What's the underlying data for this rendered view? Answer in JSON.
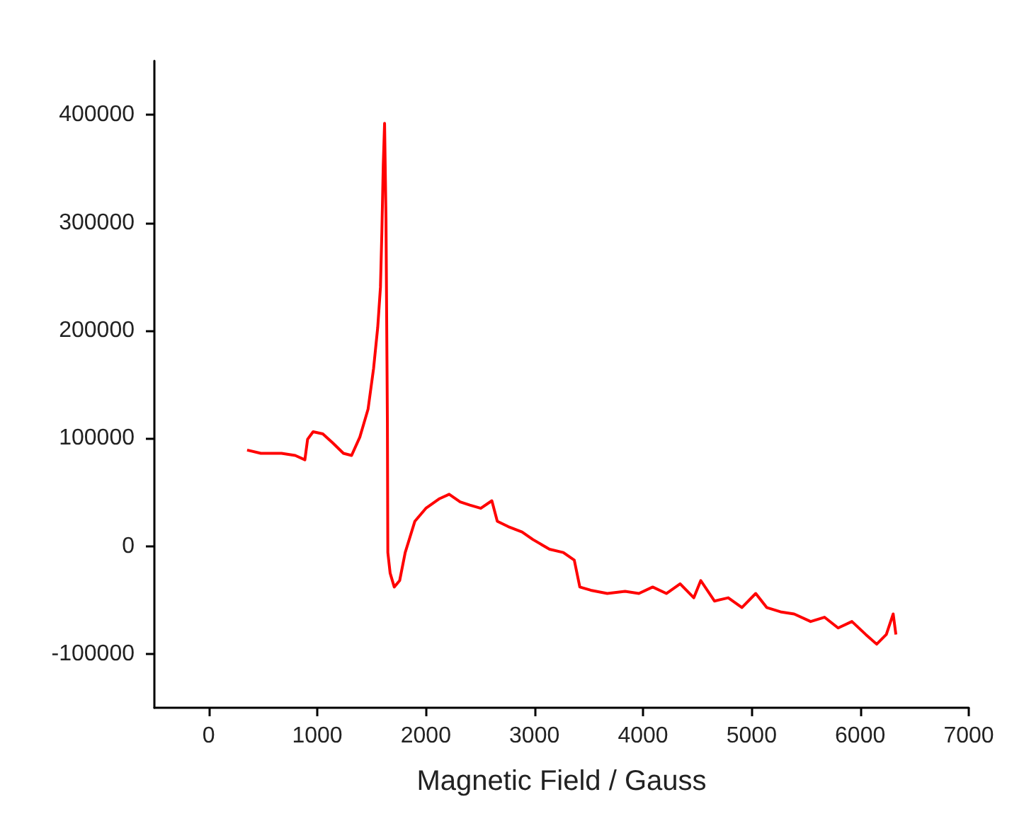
{
  "chart_data": {
    "type": "line",
    "xlabel": "Magnetic Field / Gauss",
    "xlim": [
      -500,
      7000
    ],
    "xticks": [
      0,
      1000,
      2000,
      3000,
      4000,
      5000,
      6000,
      7000
    ],
    "ylim": [
      -150000,
      450000
    ],
    "yticks": [
      -100000,
      0,
      100000,
      200000,
      300000,
      400000
    ],
    "grid": false,
    "marker": "none",
    "line_style": "solid",
    "series": [
      {
        "color": "#ff0000",
        "x": [
          354,
          481,
          671,
          797,
          886,
          911,
          962,
          1051,
          1139,
          1241,
          1316,
          1392,
          1468,
          1519,
          1557,
          1582,
          1595,
          1608,
          1620,
          1633,
          1646,
          1650,
          1671,
          1709,
          1759,
          1810,
          1899,
          2000,
          2127,
          2215,
          2316,
          2405,
          2506,
          2608,
          2658,
          2759,
          2886,
          2987,
          3139,
          3266,
          3367,
          3418,
          3519,
          3671,
          3835,
          3962,
          4089,
          4215,
          4342,
          4468,
          4532,
          4658,
          4785,
          4911,
          5038,
          5139,
          5266,
          5392,
          5544,
          5671,
          5797,
          5924,
          6051,
          6152,
          6241,
          6304,
          6329
        ],
        "values": [
          89000,
          86000,
          86000,
          84000,
          80000,
          99000,
          106000,
          104000,
          96000,
          86000,
          84000,
          101000,
          127000,
          165000,
          203000,
          240000,
          291000,
          354000,
          392000,
          304000,
          114000,
          -6000,
          -25000,
          -38000,
          -32000,
          -6000,
          23000,
          35000,
          44000,
          48000,
          41000,
          38000,
          35000,
          42000,
          23000,
          18000,
          13000,
          6000,
          -3000,
          -6000,
          -13000,
          -38000,
          -41000,
          -44000,
          -42000,
          -44000,
          -38000,
          -44000,
          -35000,
          -48000,
          -32000,
          -51000,
          -48000,
          -57000,
          -44000,
          -57000,
          -61000,
          -63000,
          -70000,
          -66000,
          -76000,
          -70000,
          -82000,
          -91000,
          -82000,
          -63000,
          -82000
        ]
      }
    ]
  }
}
